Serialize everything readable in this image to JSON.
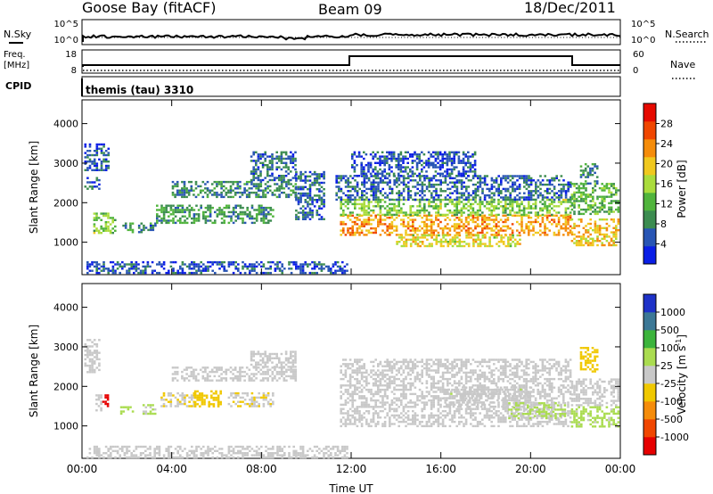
{
  "header": {
    "station": "Goose Bay (fitACF)",
    "beam": "Beam 09",
    "date": "18/Dec/2011"
  },
  "labels": {
    "nsky": "N.Sky",
    "nsearch": "N.Search",
    "freq_line1": "Freq.",
    "freq_line2": "[MHz]",
    "nave": "Nave",
    "cpid": "CPID",
    "cpid_value": "themis (tau) 3310",
    "slant_range": "Slant Range [km]",
    "time_ut": "Time UT",
    "power_label": "Power [dB]",
    "velocity_label": "Velocity [m s",
    "velocity_exp": "-1",
    "velocity_close": "]"
  },
  "noise_ticks": {
    "left": [
      "10^5",
      "10^0"
    ],
    "right": [
      "10^5",
      "10^0"
    ]
  },
  "freq_ticks": {
    "left": [
      "18",
      "8"
    ],
    "right": [
      "60",
      "0"
    ]
  },
  "colors": {
    "power": [
      "#0a1ee6",
      "#2855b4",
      "#3c8c50",
      "#50b43c",
      "#aadc3c",
      "#f0c81e",
      "#f58c0a",
      "#f04600",
      "#e60a00"
    ],
    "velocity": [
      "#e60000",
      "#f04600",
      "#f58c0a",
      "#f0c800",
      "#c8c8c8",
      "#aadc50",
      "#3cb43c",
      "#3c7896",
      "#1e32c8"
    ]
  },
  "chart_data": [
    {
      "type": "heatmap",
      "name": "power",
      "xlabel": "",
      "ylabel": "Slant Range [km]",
      "xlim": [
        0,
        24
      ],
      "ylim": [
        180,
        4600
      ],
      "y_ticks": [
        "1000",
        "2000",
        "3000",
        "4000"
      ],
      "colorbar": {
        "label": "Power [dB]",
        "ticks": [
          "4",
          "8",
          "12",
          "16",
          "20",
          "24",
          "28"
        ],
        "range": [
          0,
          32
        ]
      },
      "regions": [
        {
          "t0": 0.1,
          "t1": 0.8,
          "r0": 2350,
          "r1": 2650,
          "value": 6
        },
        {
          "t0": 0.1,
          "t1": 1.2,
          "r0": 2800,
          "r1": 3500,
          "value": 5
        },
        {
          "t0": 0.5,
          "t1": 1.5,
          "r0": 1250,
          "r1": 1750,
          "value": 14
        },
        {
          "t0": 1.8,
          "t1": 2.3,
          "r0": 1250,
          "r1": 1500,
          "value": 10
        },
        {
          "t0": 2.5,
          "t1": 3.3,
          "r0": 1250,
          "r1": 1500,
          "value": 7
        },
        {
          "t0": 3.3,
          "t1": 8.5,
          "r0": 1500,
          "r1": 1950,
          "value": 10
        },
        {
          "t0": 4.0,
          "t1": 9.5,
          "r0": 2150,
          "r1": 2550,
          "value": 8
        },
        {
          "t0": 7.5,
          "t1": 9.5,
          "r0": 2550,
          "r1": 3300,
          "value": 6
        },
        {
          "t0": 9.5,
          "t1": 10.8,
          "r0": 1600,
          "r1": 2800,
          "value": 6
        },
        {
          "t0": 0.2,
          "t1": 11.8,
          "r0": 200,
          "r1": 520,
          "value": 5
        },
        {
          "t0": 11.5,
          "t1": 21.8,
          "r0": 1200,
          "r1": 1700,
          "value": 22
        },
        {
          "t0": 11.5,
          "t1": 21.8,
          "r0": 1700,
          "r1": 2100,
          "value": 14
        },
        {
          "t0": 11.3,
          "t1": 21.8,
          "r0": 2100,
          "r1": 2700,
          "value": 6
        },
        {
          "t0": 12.0,
          "t1": 17.5,
          "r0": 2700,
          "r1": 3300,
          "value": 5
        },
        {
          "t0": 14.0,
          "t1": 19.5,
          "r0": 900,
          "r1": 1200,
          "value": 18
        },
        {
          "t0": 21.8,
          "t1": 23.9,
          "r0": 900,
          "r1": 1600,
          "value": 20
        },
        {
          "t0": 21.8,
          "t1": 23.9,
          "r0": 1700,
          "r1": 2500,
          "value": 12
        },
        {
          "t0": 22.2,
          "t1": 23.0,
          "r0": 2500,
          "r1": 3000,
          "value": 9
        }
      ]
    },
    {
      "type": "heatmap",
      "name": "velocity",
      "xlabel": "Time UT",
      "ylabel": "Slant Range [km]",
      "xlim": [
        0,
        24
      ],
      "ylim": [
        180,
        4600
      ],
      "x_ticks": [
        "00:00",
        "04:00",
        "08:00",
        "12:00",
        "16:00",
        "20:00",
        "00:00"
      ],
      "y_ticks": [
        "1000",
        "2000",
        "3000",
        "4000"
      ],
      "colorbar": {
        "label": "Velocity [m s-1]",
        "ticks": [
          "-1000",
          "-500",
          "-100",
          "-25",
          "25",
          "100",
          "500",
          "1000"
        ],
        "range": [
          -1200,
          1200
        ]
      },
      "regions": [
        {
          "t0": 0.1,
          "t1": 0.8,
          "r0": 2350,
          "r1": 3200,
          "value": 0
        },
        {
          "t0": 0.6,
          "t1": 0.9,
          "r0": 1400,
          "r1": 1800,
          "value": 40
        },
        {
          "t0": 0.9,
          "t1": 1.2,
          "r0": 1450,
          "r1": 1800,
          "value": -1000
        },
        {
          "t0": 1.7,
          "t1": 2.3,
          "r0": 1300,
          "r1": 1500,
          "value": 300
        },
        {
          "t0": 2.7,
          "t1": 3.3,
          "r0": 1300,
          "r1": 1550,
          "value": 120
        },
        {
          "t0": 3.5,
          "t1": 5.0,
          "r0": 1500,
          "r1": 1850,
          "value": -100
        },
        {
          "t0": 5.0,
          "t1": 6.2,
          "r0": 1500,
          "r1": 1900,
          "value": -300
        },
        {
          "t0": 6.5,
          "t1": 8.5,
          "r0": 1500,
          "r1": 1850,
          "value": -100
        },
        {
          "t0": 4.0,
          "t1": 9.5,
          "r0": 2150,
          "r1": 2500,
          "value": 0
        },
        {
          "t0": 7.5,
          "t1": 9.5,
          "r0": 2500,
          "r1": 2900,
          "value": 0
        },
        {
          "t0": 0.2,
          "t1": 11.8,
          "r0": 200,
          "r1": 500,
          "value": -50
        },
        {
          "t0": 11.5,
          "t1": 21.8,
          "r0": 1000,
          "r1": 2700,
          "value": 0
        },
        {
          "t0": 16.0,
          "t1": 20.0,
          "r0": 1500,
          "r1": 2000,
          "value": 60
        },
        {
          "t0": 19.0,
          "t1": 21.5,
          "r0": 1200,
          "r1": 1600,
          "value": 150
        },
        {
          "t0": 21.8,
          "t1": 23.9,
          "r0": 1000,
          "r1": 1500,
          "value": 200
        },
        {
          "t0": 21.8,
          "t1": 23.9,
          "r0": 1500,
          "r1": 2200,
          "value": 0
        },
        {
          "t0": 22.2,
          "t1": 23.0,
          "r0": 2400,
          "r1": 3000,
          "value": -300
        }
      ]
    }
  ]
}
